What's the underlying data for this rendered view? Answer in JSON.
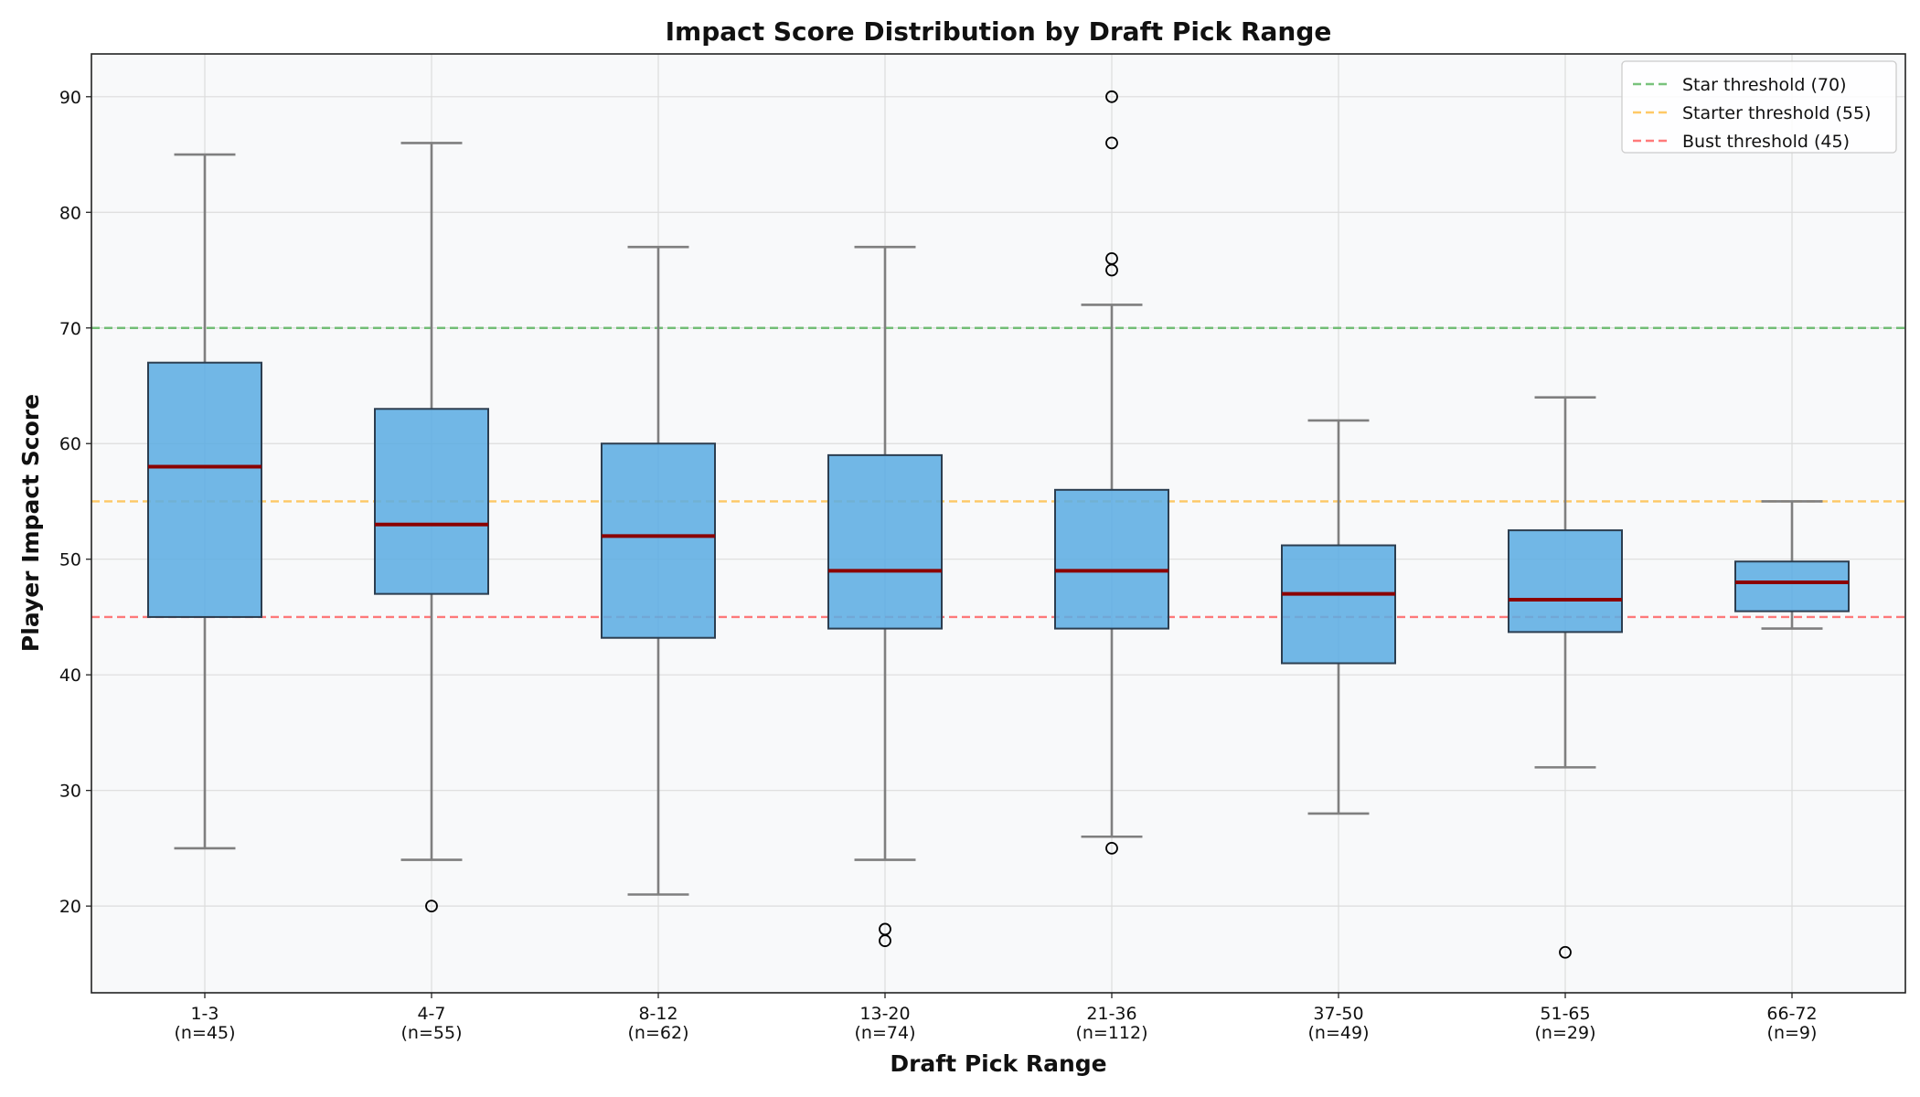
{
  "chart_data": {
    "type": "box",
    "title": "Impact Score Distribution by Draft Pick Range",
    "xlabel": "Draft Pick Range",
    "ylabel": "Player Impact Score",
    "ylim": [
      12.5,
      93.7
    ],
    "yticks": [
      20,
      30,
      40,
      50,
      60,
      70,
      80,
      90
    ],
    "grid": true,
    "legend_position": "top-right",
    "colors": {
      "box_fill": "#5dade2",
      "box_edge": "#2c3e50",
      "median": "#8b0000",
      "whisker": "#7f7f7f",
      "background": "#f8f9fa"
    },
    "categories": [
      {
        "label": "1-3",
        "n_label": "(n=45)",
        "min": 25,
        "q1": 45,
        "median": 58,
        "q3": 67,
        "max": 85,
        "outliers": []
      },
      {
        "label": "4-7",
        "n_label": "(n=55)",
        "min": 24,
        "q1": 47,
        "median": 53,
        "q3": 63,
        "max": 86,
        "outliers": [
          20
        ]
      },
      {
        "label": "8-12",
        "n_label": "(n=62)",
        "min": 21,
        "q1": 43.2,
        "median": 52,
        "q3": 60,
        "max": 77,
        "outliers": []
      },
      {
        "label": "13-20",
        "n_label": "(n=74)",
        "min": 24,
        "q1": 44,
        "median": 49,
        "q3": 59,
        "max": 77,
        "outliers": [
          18,
          17
        ]
      },
      {
        "label": "21-36",
        "n_label": "(n=112)",
        "min": 26,
        "q1": 44,
        "median": 49,
        "q3": 56,
        "max": 72,
        "outliers": [
          90,
          86,
          76,
          75,
          25
        ]
      },
      {
        "label": "37-50",
        "n_label": "(n=49)",
        "min": 28,
        "q1": 41,
        "median": 47,
        "q3": 51.2,
        "max": 62,
        "outliers": []
      },
      {
        "label": "51-65",
        "n_label": "(n=29)",
        "min": 32,
        "q1": 43.7,
        "median": 46.5,
        "q3": 52.5,
        "max": 64,
        "outliers": [
          16
        ]
      },
      {
        "label": "66-72",
        "n_label": "(n=9)",
        "min": 44,
        "q1": 45.5,
        "median": 48,
        "q3": 49.8,
        "max": 55,
        "outliers": []
      }
    ],
    "thresholds": [
      {
        "name": "Star threshold (70)",
        "value": 70,
        "color": "#4caf50"
      },
      {
        "name": "Starter threshold (55)",
        "value": 55,
        "color": "#ffb733"
      },
      {
        "name": "Bust threshold (45)",
        "value": 45,
        "color": "#ff4d4d"
      }
    ]
  }
}
